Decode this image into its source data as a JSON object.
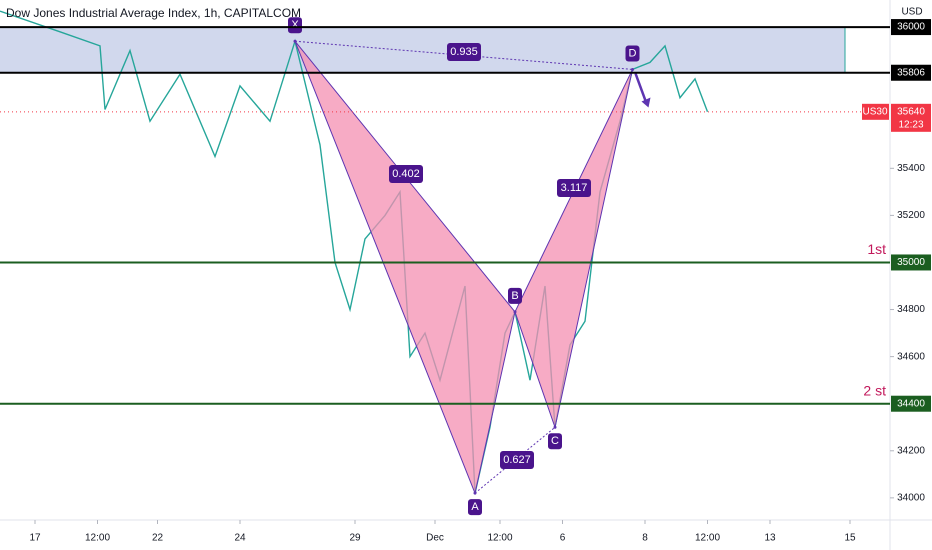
{
  "chart_data": {
    "type": "line",
    "title": "Dow Jones Industrial Average Index, 1h, CAPITALCOM",
    "currency": "USD",
    "xlim": [
      0,
      356
    ],
    "ylim": [
      33906,
      36115
    ],
    "xticks": [
      {
        "value": 14,
        "label": "17"
      },
      {
        "value": 39,
        "label": "12:00"
      },
      {
        "value": 63,
        "label": "22"
      },
      {
        "value": 96,
        "label": "24"
      },
      {
        "value": 142,
        "label": "29"
      },
      {
        "value": 174,
        "label": "Dec"
      },
      {
        "value": 200,
        "label": "12:00"
      },
      {
        "value": 225,
        "label": "6"
      },
      {
        "value": 258,
        "label": "8"
      },
      {
        "value": 283,
        "label": "12:00"
      },
      {
        "value": 308,
        "label": "13"
      },
      {
        "value": 340,
        "label": "15"
      }
    ],
    "yticks": [
      34000,
      34200,
      34600,
      34800,
      35200,
      35400
    ],
    "price": {
      "color": "#26a69a",
      "x": [
        0,
        24,
        40,
        42,
        52,
        60,
        72,
        86,
        96,
        108,
        118,
        128,
        134,
        140,
        146,
        154,
        160,
        164,
        170,
        176,
        186,
        190,
        196,
        202,
        206,
        212,
        218,
        222,
        228,
        234,
        240,
        248,
        253,
        260,
        266,
        272,
        278,
        283
      ],
      "values": [
        36068,
        35980,
        35920,
        35650,
        35900,
        35600,
        35800,
        35450,
        35750,
        35600,
        35940,
        35500,
        35000,
        34800,
        35100,
        35200,
        35300,
        34600,
        34700,
        34500,
        34900,
        34020,
        34300,
        34700,
        34790,
        34500,
        34900,
        34300,
        34650,
        34750,
        35300,
        35600,
        35820,
        35850,
        35920,
        35700,
        35780,
        35640
      ]
    },
    "zone": {
      "xlim": [
        0,
        338
      ],
      "ylim": [
        35806,
        36000
      ],
      "color": "#c5cee9"
    },
    "levels": [
      {
        "value": 36000,
        "color": "#000000"
      },
      {
        "value": 35806,
        "color": "#000000"
      },
      {
        "value": 35000,
        "color": "#1b5e20",
        "label": "1st"
      },
      {
        "value": 34400,
        "color": "#1b5e20",
        "label": "2 st"
      }
    ],
    "pattern": {
      "color": "#f48fb1",
      "points": [
        {
          "label": "X",
          "x": 118,
          "value": 35940
        },
        {
          "label": "A",
          "x": 190,
          "value": 34020
        },
        {
          "label": "B",
          "x": 206,
          "value": 34790
        },
        {
          "label": "C",
          "x": 222,
          "value": 34300
        },
        {
          "label": "D",
          "x": 253,
          "value": 35820
        }
      ],
      "ratios": [
        0.935,
        0.402,
        3.117,
        0.627
      ]
    },
    "current": {
      "symbol": "US30",
      "value": 35640,
      "time": "12:23",
      "color": "#f23645"
    }
  }
}
